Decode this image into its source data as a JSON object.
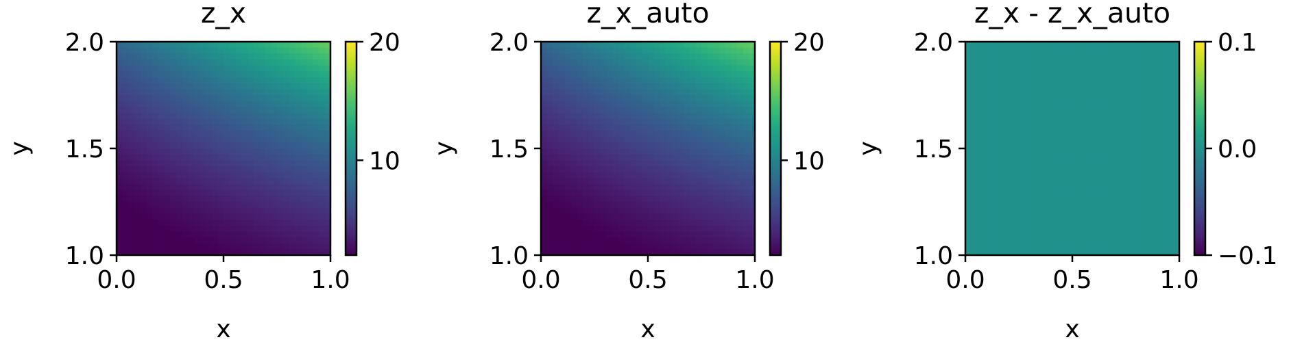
{
  "chart_data": [
    {
      "type": "heatmap",
      "title": "z_x",
      "xlabel": "x",
      "ylabel": "y",
      "xlim": [
        0.0,
        1.0
      ],
      "ylim": [
        1.0,
        2.0
      ],
      "x_ticks": [
        "0.0",
        "0.5",
        "1.0"
      ],
      "y_ticks": [
        "1.0",
        "1.5",
        "2.0"
      ],
      "colormap": "viridis",
      "colorbar": {
        "min": 2,
        "max": 20,
        "ticks": [
          10,
          20
        ],
        "tick_labels": [
          "10",
          "20"
        ]
      },
      "field": "2*x*y^2 + y^3",
      "corner_values": {
        "x0_y1": 1,
        "x1_y1": 3,
        "x0_y2": 8,
        "x1_y2": 16
      }
    },
    {
      "type": "heatmap",
      "title": "z_x_auto",
      "xlabel": "x",
      "ylabel": "y",
      "xlim": [
        0.0,
        1.0
      ],
      "ylim": [
        1.0,
        2.0
      ],
      "x_ticks": [
        "0.0",
        "0.5",
        "1.0"
      ],
      "y_ticks": [
        "1.0",
        "1.5",
        "2.0"
      ],
      "colormap": "viridis",
      "colorbar": {
        "min": 2,
        "max": 20,
        "ticks": [
          10,
          20
        ],
        "tick_labels": [
          "10",
          "20"
        ]
      },
      "field": "2*x*y^2 + y^3",
      "corner_values": {
        "x0_y1": 1,
        "x1_y1": 3,
        "x0_y2": 8,
        "x1_y2": 16
      }
    },
    {
      "type": "heatmap",
      "title": "z_x - z_x_auto",
      "xlabel": "x",
      "ylabel": "y",
      "xlim": [
        0.0,
        1.0
      ],
      "ylim": [
        1.0,
        2.0
      ],
      "x_ticks": [
        "0.0",
        "0.5",
        "1.0"
      ],
      "y_ticks": [
        "1.0",
        "1.5",
        "2.0"
      ],
      "colormap": "viridis",
      "colorbar": {
        "min": -0.1,
        "max": 0.1,
        "ticks": [
          -0.1,
          0.0,
          0.1
        ],
        "tick_labels": [
          "−0.1",
          "0.0",
          "0.1"
        ]
      },
      "field": "0",
      "constant_value": 0.0
    }
  ]
}
